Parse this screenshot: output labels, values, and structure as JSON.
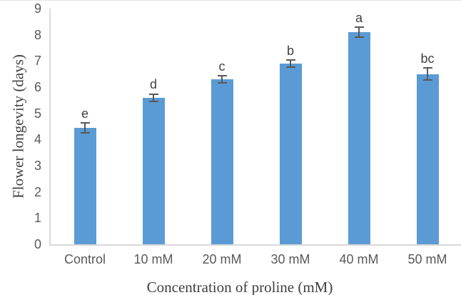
{
  "chart_data": {
    "type": "bar",
    "xlabel": "Concentration of proline (mM)",
    "ylabel": "Flower longevity (days)",
    "categories": [
      "Control",
      "10 mM",
      "20 mM",
      "30 mM",
      "40 mM",
      "50 mM"
    ],
    "values": [
      4.45,
      5.6,
      6.3,
      6.9,
      8.1,
      6.5
    ],
    "error_bars": [
      0.2,
      0.15,
      0.15,
      0.15,
      0.2,
      0.25
    ],
    "significance_letters": [
      "e",
      "d",
      "c",
      "b",
      "a",
      "bc"
    ],
    "ylim": [
      0,
      9
    ],
    "yticks": [
      0,
      1,
      2,
      3,
      4,
      5,
      6,
      7,
      8,
      9
    ],
    "grid": false,
    "legend": false,
    "layout": {
      "legend_position": "none",
      "bar_orientation": "vertical"
    },
    "colors": {
      "bar_fill": "#5B9BD5",
      "error_bar": "#595959",
      "axis_line": "#D9D9D9",
      "tick_label": "#595959",
      "axis_title": "#404040",
      "significance_letter": "#404040",
      "background": "#FFFFFF"
    }
  }
}
